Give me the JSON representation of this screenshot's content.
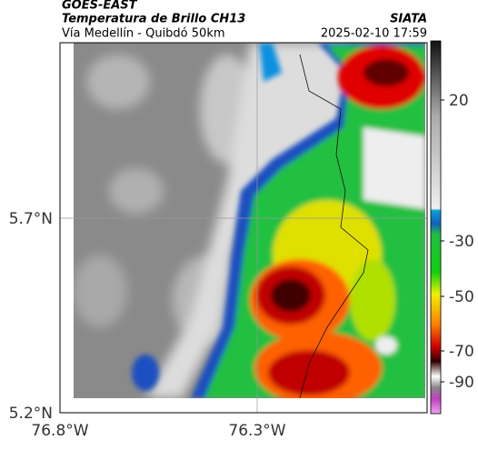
{
  "header": {
    "satellite": "GOES-EAST",
    "product": "Temperatura de Brillo CH13",
    "route": "Vía Medellín - Quibdó 50km",
    "source": "SIATA",
    "datetime": "2025-02-10 17:59"
  },
  "map": {
    "lat_ticks": [
      "5.7°N",
      "5.2°N"
    ],
    "lon_ticks": [
      "76.8°W",
      "76.3°W"
    ]
  },
  "colorbar": {
    "ticks": [
      20,
      -30,
      -50,
      -70,
      -90
    ]
  }
}
